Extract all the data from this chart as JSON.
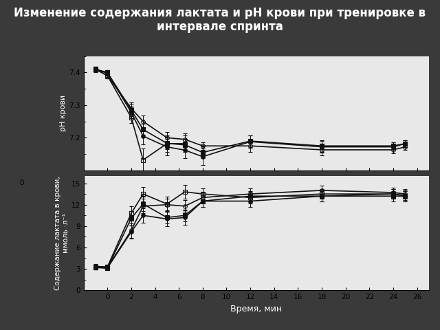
{
  "title": "Изменение содержания лактата и рН крови при тренировке в\nинтервале спринта",
  "title_fontsize": 12,
  "xlabel": "Время, мин",
  "ylabel_top": "рН крови",
  "ylabel_bottom": "Содержание лактата в крови,\nммоль ·л⁻¹",
  "x_ticks": [
    0,
    2,
    4,
    6,
    8,
    10,
    12,
    14,
    16,
    18,
    20,
    22,
    24,
    26
  ],
  "x_lim": [
    -2,
    27
  ],
  "ph_ylim": [
    7.1,
    7.45
  ],
  "ph_yticks": [
    7.2,
    7.3,
    7.4
  ],
  "lac_ylim": [
    0,
    16
  ],
  "lac_yticks": [
    3,
    6,
    9,
    12,
    15
  ],
  "series": {
    "open_circle": {
      "marker": "o",
      "fillstyle": "none",
      "color": "#111111",
      "ph_x": [
        -1,
        0,
        2,
        3,
        5,
        6.5,
        8,
        12,
        18,
        24,
        25
      ],
      "ph_y": [
        7.41,
        7.39,
        7.29,
        7.25,
        7.2,
        7.195,
        7.175,
        7.175,
        7.163,
        7.163,
        7.172
      ],
      "ph_err": [
        0.008,
        0.008,
        0.018,
        0.018,
        0.018,
        0.018,
        0.012,
        0.018,
        0.018,
        0.01,
        0.01
      ],
      "lac_x": [
        -1,
        0,
        2,
        3,
        5,
        6.5,
        8,
        12,
        18,
        24,
        25
      ],
      "lac_y": [
        3.3,
        3.2,
        8.4,
        11.8,
        12.0,
        11.8,
        13.0,
        13.5,
        14.0,
        13.7,
        13.5
      ],
      "lac_err": [
        0.3,
        0.3,
        1.0,
        1.0,
        0.8,
        0.8,
        0.7,
        0.8,
        0.7,
        0.7,
        0.7
      ]
    },
    "filled_square": {
      "marker": "s",
      "fillstyle": "full",
      "color": "#111111",
      "ph_x": [
        -1,
        0,
        2,
        3,
        5,
        6.5,
        8,
        12,
        18,
        24,
        25
      ],
      "ph_y": [
        7.41,
        7.4,
        7.285,
        7.225,
        7.183,
        7.178,
        7.155,
        7.19,
        7.175,
        7.175,
        7.182
      ],
      "ph_err": [
        0.008,
        0.008,
        0.018,
        0.018,
        0.018,
        0.018,
        0.018,
        0.018,
        0.018,
        0.01,
        0.01
      ],
      "lac_x": [
        -1,
        0,
        2,
        3,
        5,
        6.5,
        8,
        12,
        18,
        24,
        25
      ],
      "lac_y": [
        3.2,
        3.1,
        10.1,
        12.1,
        10.2,
        10.5,
        12.5,
        13.2,
        13.2,
        13.2,
        13.2
      ],
      "lac_err": [
        0.3,
        0.2,
        1.0,
        1.0,
        0.8,
        0.8,
        0.8,
        0.7,
        0.7,
        0.7,
        0.7
      ]
    },
    "filled_circle": {
      "marker": "o",
      "fillstyle": "full",
      "color": "#111111",
      "ph_x": [
        -1,
        0,
        2,
        3,
        5,
        6.5,
        8,
        12,
        18,
        24,
        25
      ],
      "ph_y": [
        7.408,
        7.398,
        7.278,
        7.205,
        7.172,
        7.162,
        7.142,
        7.188,
        7.172,
        7.172,
        7.182
      ],
      "ph_err": [
        0.008,
        0.008,
        0.018,
        0.025,
        0.025,
        0.025,
        0.025,
        0.018,
        0.018,
        0.01,
        0.01
      ],
      "lac_x": [
        -1,
        0,
        2,
        3,
        5,
        6.5,
        8,
        12,
        18,
        24,
        25
      ],
      "lac_y": [
        3.25,
        3.15,
        8.2,
        10.5,
        10.0,
        10.2,
        12.5,
        12.5,
        13.2,
        13.5,
        13.3
      ],
      "lac_err": [
        0.3,
        0.3,
        0.9,
        1.0,
        1.0,
        1.0,
        0.8,
        0.8,
        0.7,
        0.7,
        0.7
      ]
    },
    "open_square": {
      "marker": "s",
      "fillstyle": "none",
      "color": "#111111",
      "ph_x": [
        -1,
        0,
        2,
        3,
        5,
        6.5
      ],
      "ph_y": [
        7.41,
        7.39,
        7.262,
        7.132,
        7.182,
        7.182
      ],
      "ph_err": [
        0.008,
        0.008,
        0.018,
        0.035,
        0.025,
        0.025
      ],
      "lac_x": [
        -1,
        0,
        2,
        3,
        5,
        6.5,
        8,
        12,
        18,
        24,
        25
      ],
      "lac_y": [
        3.35,
        3.3,
        10.8,
        13.5,
        12.1,
        13.8,
        13.5,
        13.0,
        13.5,
        13.5,
        13.2
      ],
      "lac_err": [
        0.3,
        0.3,
        1.0,
        1.0,
        1.0,
        1.0,
        0.8,
        0.8,
        0.7,
        0.7,
        0.7
      ]
    }
  },
  "bg_color": "#3a3a3a",
  "plot_bg": "#e8e8e8",
  "linewidth": 1.2,
  "markersize": 4,
  "capsize": 2
}
